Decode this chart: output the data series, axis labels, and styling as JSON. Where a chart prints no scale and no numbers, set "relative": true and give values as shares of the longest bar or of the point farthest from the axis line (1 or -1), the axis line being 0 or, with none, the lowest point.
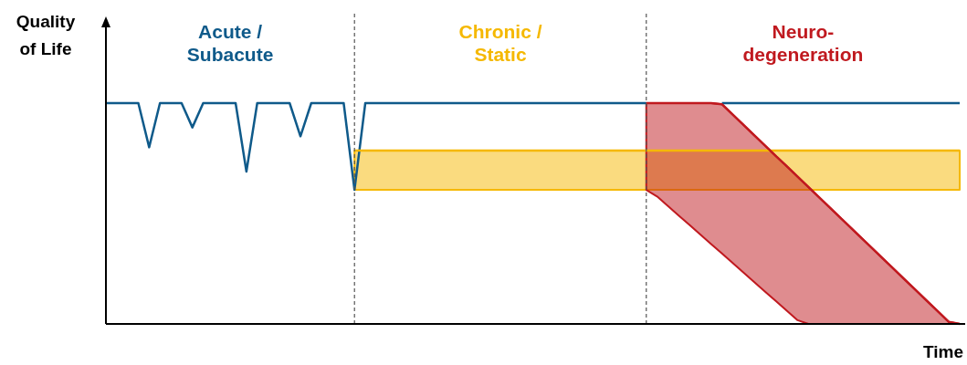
{
  "chart_data": {
    "type": "line",
    "relative": true,
    "xlabel": "Time",
    "ylabel": "Quality of Life",
    "categories": [
      null,
      null,
      null,
      null,
      null,
      null,
      null,
      null,
      null,
      null,
      null,
      null,
      null,
      null,
      null,
      null,
      null,
      null,
      null,
      null,
      null,
      null,
      null,
      null,
      null,
      null,
      null,
      null,
      null,
      null,
      null,
      null,
      null,
      null,
      null,
      null,
      null,
      null,
      null,
      null,
      null,
      null,
      null,
      null,
      null,
      null,
      null,
      null,
      null,
      null,
      null,
      null,
      null,
      null,
      null,
      null,
      null,
      null,
      null,
      null,
      null,
      null,
      null,
      null,
      null,
      null,
      null,
      null,
      null,
      null,
      null,
      null,
      null,
      null,
      null,
      null,
      null,
      null,
      null,
      null
    ],
    "series": [
      {
        "name": "Acute /\nSubacute",
        "color": "#0f5a8a",
        "values": [
          1,
          1,
          1,
          1,
          0.8,
          1,
          1,
          1,
          0.89,
          1,
          1,
          1,
          1,
          0.69,
          1,
          1,
          1,
          1,
          0.85,
          1,
          1,
          1,
          1,
          0.607,
          1,
          1,
          1,
          1,
          1,
          1,
          1,
          1,
          1,
          1,
          1,
          1,
          1,
          1,
          1,
          1,
          1,
          1,
          1,
          1,
          1,
          1,
          1,
          1,
          1,
          1,
          1,
          null,
          null,
          null,
          null,
          null,
          null,
          1,
          1,
          1,
          1,
          1,
          1,
          1,
          1,
          1,
          1,
          1,
          1,
          1,
          1,
          1,
          1,
          1,
          1,
          1,
          1,
          1,
          1,
          1
        ]
      },
      {
        "name": "Chronic /\nStatic",
        "type": "line",
        "color": "#f5b800",
        "values": [
          null,
          null,
          null,
          null,
          null,
          null,
          null,
          null,
          null,
          null,
          null,
          null,
          null,
          null,
          null,
          null,
          null,
          null,
          null,
          null,
          null,
          null,
          null,
          0.785,
          0.785,
          0.785,
          0.785,
          0.785,
          0.785,
          0.785,
          0.785,
          0.785,
          0.785,
          0.785,
          0.785,
          0.785,
          0.785,
          0.785,
          0.785,
          0.785,
          0.785,
          0.785,
          0.785,
          0.785,
          0.785,
          0.785,
          0.785,
          0.785,
          0.785,
          0.785,
          0.785,
          0.785,
          0.785,
          0.785,
          0.785,
          0.785,
          0.785,
          0.785,
          0.785,
          0.785,
          0.785,
          0.785,
          0.785,
          0.785,
          0.785,
          0.785,
          0.785,
          0.785,
          0.785,
          0.785,
          0.785,
          0.785,
          0.785,
          0.785,
          0.785,
          0.785,
          0.785,
          0.785,
          0.785,
          0.785
        ],
        "upper": [
          null,
          null,
          null,
          null,
          null,
          null,
          null,
          null,
          null,
          null,
          null,
          null,
          null,
          null,
          null,
          null,
          null,
          null,
          null,
          null,
          null,
          null,
          null,
          0.785,
          0.785,
          0.785,
          0.785,
          0.785,
          0.785,
          0.785,
          0.785,
          0.785,
          0.785,
          0.785,
          0.785,
          0.785,
          0.785,
          0.785,
          0.785,
          0.785,
          0.785,
          0.785,
          0.785,
          0.785,
          0.785,
          0.785,
          0.785,
          0.785,
          0.785,
          0.785,
          0.785,
          0.785,
          0.785,
          0.785,
          0.785,
          0.785,
          0.785,
          0.785,
          0.785,
          0.785,
          0.785,
          0.785,
          0.785,
          0.785,
          0.785,
          0.785,
          0.785,
          0.785,
          0.785,
          0.785,
          0.785,
          0.785,
          0.785,
          0.785,
          0.785,
          0.785,
          0.785,
          0.785,
          0.785,
          0.785
        ],
        "lower": [
          null,
          null,
          null,
          null,
          null,
          null,
          null,
          null,
          null,
          null,
          null,
          null,
          null,
          null,
          null,
          null,
          null,
          null,
          null,
          null,
          null,
          null,
          null,
          0.607,
          0.607,
          0.607,
          0.607,
          0.607,
          0.607,
          0.607,
          0.607,
          0.607,
          0.607,
          0.607,
          0.607,
          0.607,
          0.607,
          0.607,
          0.607,
          0.607,
          0.607,
          0.607,
          0.607,
          0.607,
          0.607,
          0.607,
          0.607,
          0.607,
          0.607,
          0.607,
          0.607,
          0.607,
          0.607,
          0.607,
          0.607,
          0.607,
          0.607,
          0.607,
          0.607,
          0.607,
          0.607,
          0.607,
          0.607,
          0.607,
          0.607,
          0.607,
          0.607,
          0.607,
          0.607,
          0.607,
          0.607,
          0.607,
          0.607,
          0.607,
          0.607,
          0.607,
          0.607,
          0.607,
          0.607,
          0.607
        ]
      },
      {
        "name": "Neuro-\ndegeneration",
        "type": "line",
        "color": "#c0191f",
        "values": [
          null,
          null,
          null,
          null,
          null,
          null,
          null,
          null,
          null,
          null,
          null,
          null,
          null,
          null,
          null,
          null,
          null,
          null,
          null,
          null,
          null,
          null,
          null,
          null,
          null,
          null,
          null,
          null,
          null,
          null,
          null,
          null,
          null,
          null,
          null,
          null,
          null,
          null,
          null,
          null,
          null,
          null,
          null,
          null,
          null,
          null,
          null,
          null,
          null,
          null,
          1,
          1,
          1,
          1,
          1,
          1,
          1,
          0.995,
          0.948,
          0.901,
          0.854,
          0.807,
          0.76,
          0.714,
          0.667,
          0.62,
          0.573,
          0.526,
          0.479,
          0.432,
          0.385,
          0.338,
          0.291,
          0.244,
          0.197,
          0.15,
          0.103,
          0.056,
          0.009,
          0
        ],
        "upper": [
          null,
          null,
          null,
          null,
          null,
          null,
          null,
          null,
          null,
          null,
          null,
          null,
          null,
          null,
          null,
          null,
          null,
          null,
          null,
          null,
          null,
          null,
          null,
          null,
          null,
          null,
          null,
          null,
          null,
          null,
          null,
          null,
          null,
          null,
          null,
          null,
          null,
          null,
          null,
          null,
          null,
          null,
          null,
          null,
          null,
          null,
          null,
          null,
          null,
          null,
          1,
          1,
          1,
          1,
          1,
          1,
          1,
          0.995,
          0.948,
          0.901,
          0.854,
          0.807,
          0.76,
          0.714,
          0.667,
          0.62,
          0.573,
          0.526,
          0.479,
          0.432,
          0.385,
          0.338,
          0.291,
          0.244,
          0.197,
          0.15,
          0.103,
          0.056,
          0.009,
          0
        ],
        "lower": [
          null,
          null,
          null,
          null,
          null,
          null,
          null,
          null,
          null,
          null,
          null,
          null,
          null,
          null,
          null,
          null,
          null,
          null,
          null,
          null,
          null,
          null,
          null,
          null,
          null,
          null,
          null,
          null,
          null,
          null,
          null,
          null,
          null,
          null,
          null,
          null,
          null,
          null,
          null,
          null,
          null,
          null,
          null,
          null,
          null,
          null,
          null,
          null,
          null,
          null,
          0.607,
          0.577,
          0.534,
          0.491,
          0.448,
          0.405,
          0.362,
          0.319,
          0.276,
          0.232,
          0.189,
          0.146,
          0.103,
          0.06,
          0.017,
          0,
          0,
          0,
          0,
          0,
          0,
          0,
          0,
          0,
          0,
          0,
          0,
          0,
          0,
          0
        ]
      }
    ]
  }
}
